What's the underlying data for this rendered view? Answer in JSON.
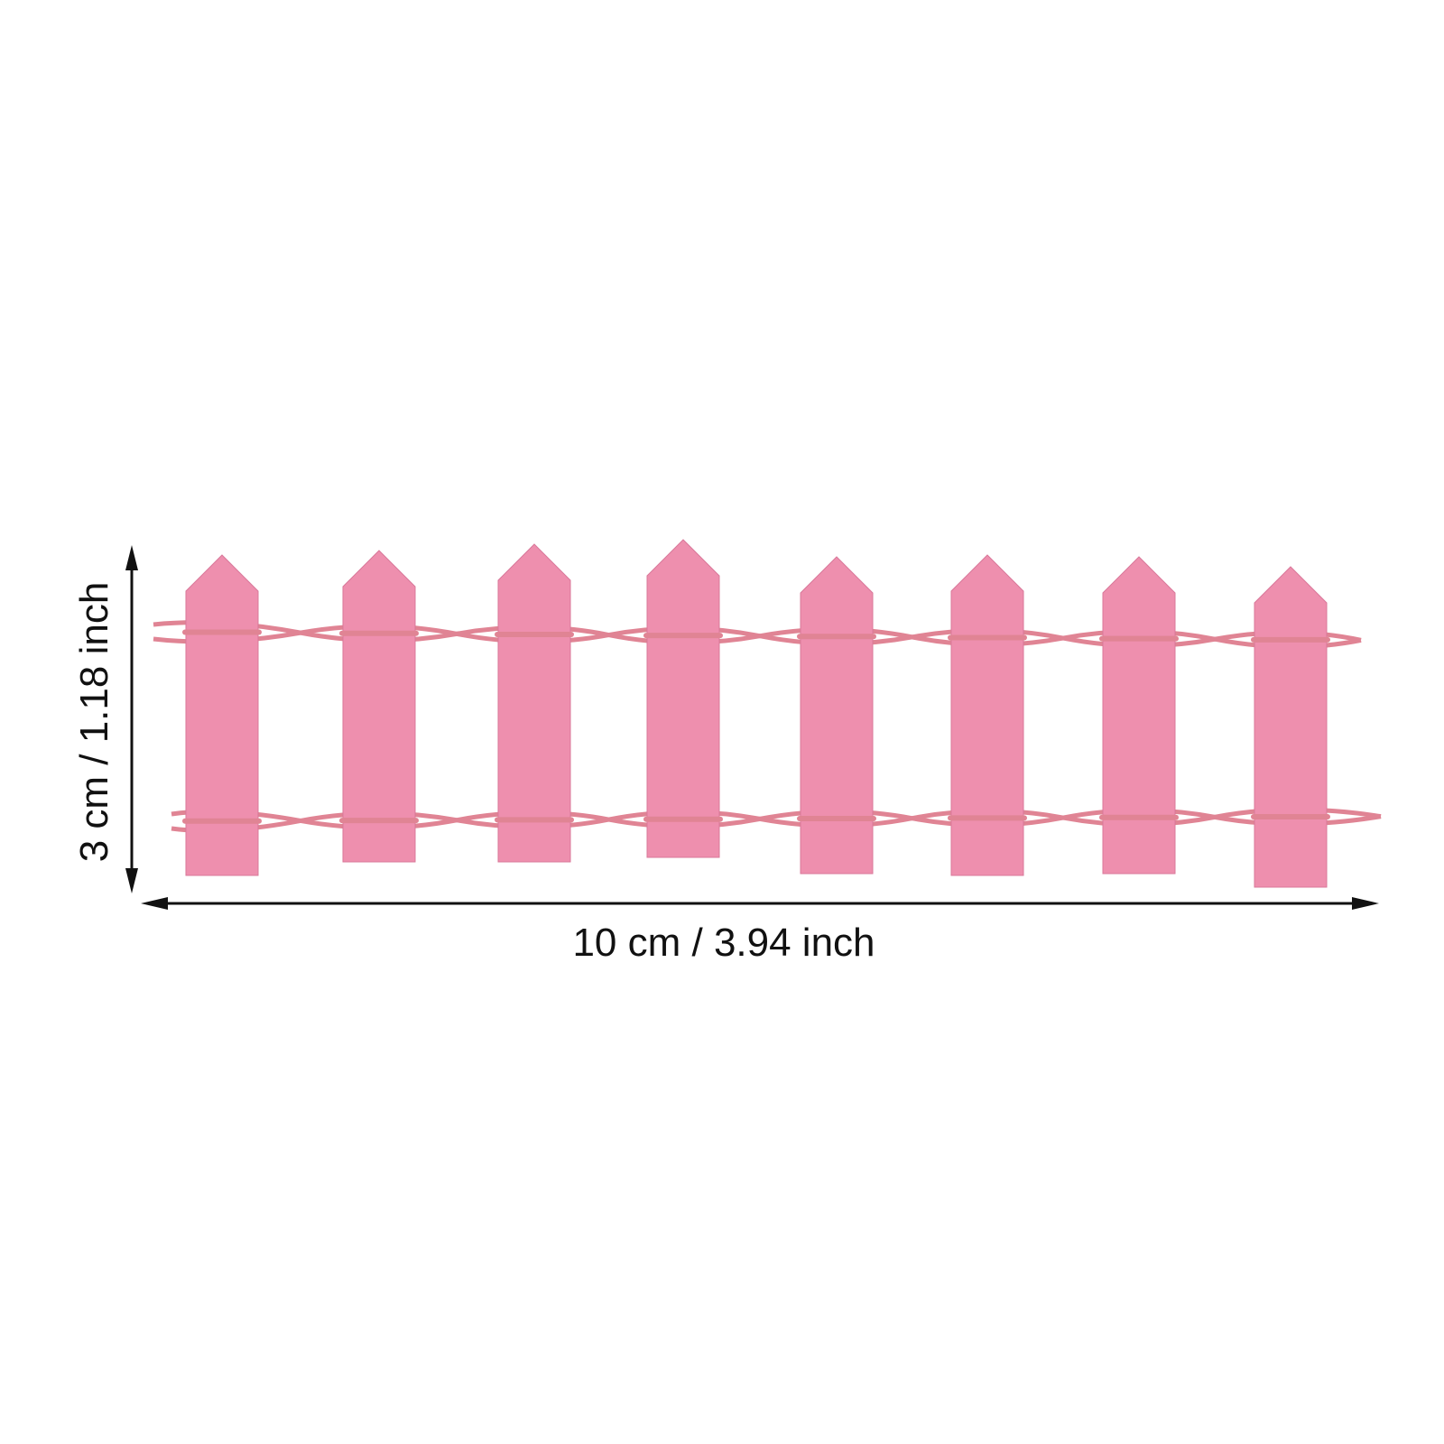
{
  "product": {
    "picket_count": 8,
    "colors": {
      "picket": "#ee8fae",
      "wire": "#e08494",
      "dimension_line": "#111111"
    }
  },
  "dimensions": {
    "width_label": "10 cm / 3.94 inch",
    "height_label": "3 cm / 1.18 inch"
  }
}
